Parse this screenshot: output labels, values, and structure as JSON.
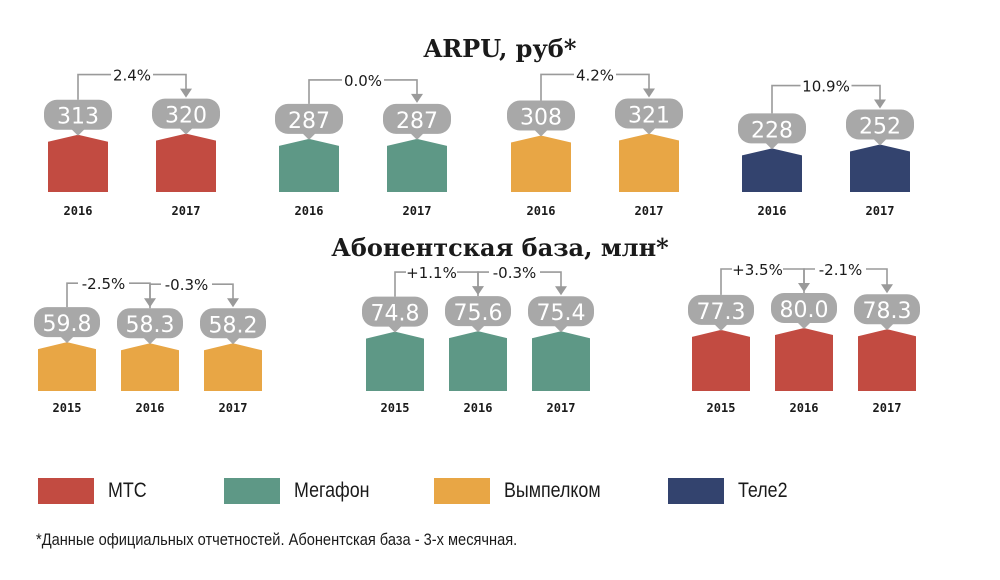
{
  "colors": {
    "МТС": "#c24b41",
    "Мегафон": "#5e9886",
    "Вымпелком": "#e8a645",
    "Теле2": "#33436e",
    "bubble": "#a8a8a8",
    "connector": "#9a9a9a"
  },
  "legend": [
    {
      "name": "МТС",
      "icon": "red-swatch"
    },
    {
      "name": "Мегафон",
      "icon": "green-swatch"
    },
    {
      "name": "Вымпелком",
      "icon": "orange-swatch"
    },
    {
      "name": "Теле2",
      "icon": "navy-swatch"
    }
  ],
  "footnote": "*Данные официальных отчетностей. Абонентская база - 3-х месячная.",
  "chart_data": [
    {
      "type": "bar",
      "title": "ARPU, руб*",
      "ylabel": "руб",
      "ylim": [
        0,
        330
      ],
      "groups": [
        {
          "operator": "МТС",
          "categories": [
            "2016",
            "2017"
          ],
          "values": [
            313,
            320
          ],
          "value_labels": [
            "313",
            "320"
          ],
          "changes": [
            "2.4%"
          ]
        },
        {
          "operator": "Мегафон",
          "categories": [
            "2016",
            "2017"
          ],
          "values": [
            287,
            287
          ],
          "value_labels": [
            "287",
            "287"
          ],
          "changes": [
            "0.0%"
          ]
        },
        {
          "operator": "Вымпелком",
          "categories": [
            "2016",
            "2017"
          ],
          "values": [
            308,
            321
          ],
          "value_labels": [
            "308",
            "321"
          ],
          "changes": [
            "4.2%"
          ]
        },
        {
          "operator": "Теле2",
          "categories": [
            "2016",
            "2017"
          ],
          "values": [
            228,
            252
          ],
          "value_labels": [
            "228",
            "252"
          ],
          "changes": [
            "10.9%"
          ]
        }
      ]
    },
    {
      "type": "bar",
      "title": "Абонентская база, млн*",
      "ylabel": "млн",
      "ylim": [
        0,
        82
      ],
      "groups": [
        {
          "operator": "Вымпелком",
          "categories": [
            "2015",
            "2016",
            "2017"
          ],
          "values": [
            59.8,
            58.3,
            58.2
          ],
          "value_labels": [
            "59.8",
            "58.3",
            "58.2"
          ],
          "changes": [
            "-2.5%",
            "-0.3%"
          ]
        },
        {
          "operator": "Мегафон",
          "categories": [
            "2015",
            "2016",
            "2017"
          ],
          "values": [
            74.8,
            75.6,
            75.4
          ],
          "value_labels": [
            "74.8",
            "75.6",
            "75.4"
          ],
          "changes": [
            "+1.1%",
            "-0.3%"
          ]
        },
        {
          "operator": "МТС",
          "categories": [
            "2015",
            "2016",
            "2017"
          ],
          "values": [
            77.3,
            80.0,
            78.3
          ],
          "value_labels": [
            "77.3",
            "80.0",
            "78.3"
          ],
          "changes": [
            "+3.5%",
            "-2.1%"
          ]
        }
      ]
    }
  ]
}
